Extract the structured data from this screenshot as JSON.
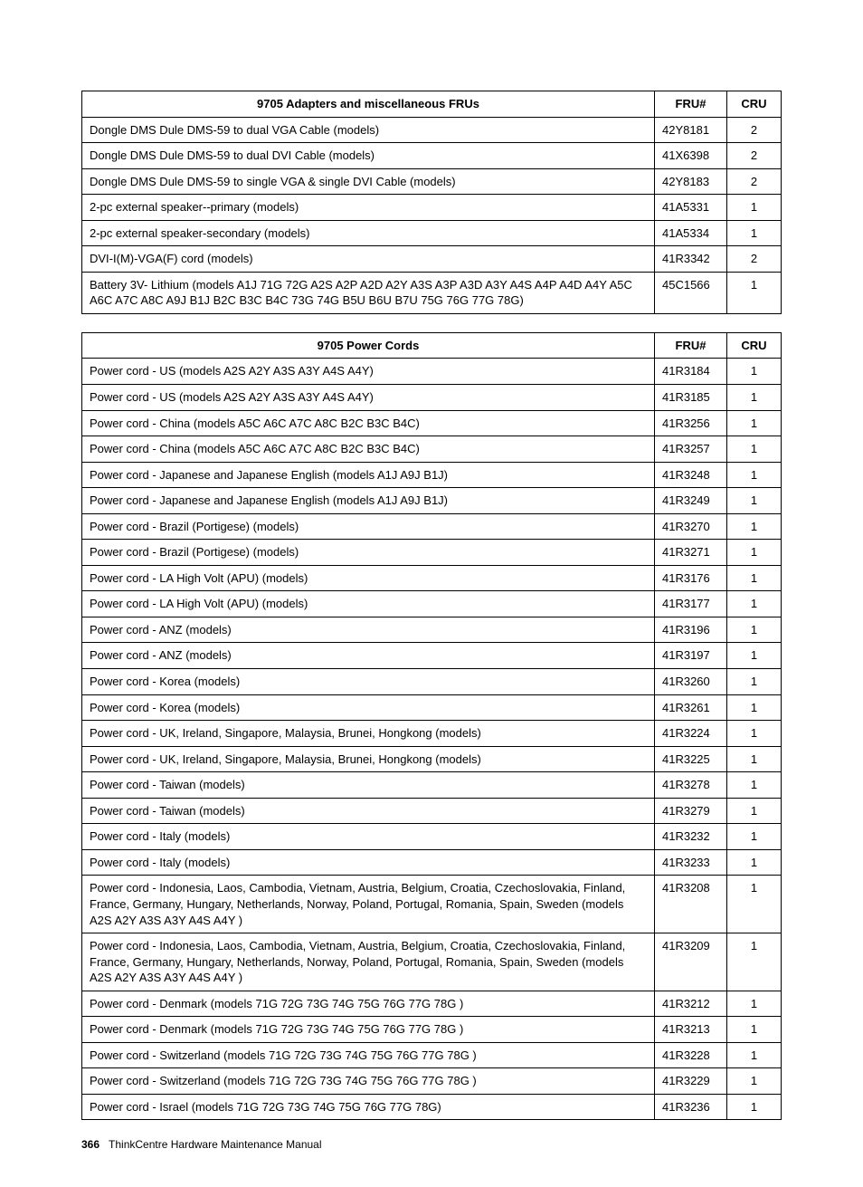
{
  "table1": {
    "headers": {
      "desc": "9705 Adapters and miscellaneous FRUs",
      "fru": "FRU#",
      "cru": "CRU"
    },
    "rows": [
      {
        "desc": "Dongle DMS Dule DMS-59 to dual VGA Cable (models)",
        "fru": "42Y8181",
        "cru": "2"
      },
      {
        "desc": "Dongle DMS Dule DMS-59 to dual DVI Cable (models)",
        "fru": "41X6398",
        "cru": "2"
      },
      {
        "desc": "Dongle DMS Dule DMS-59 to single VGA & single DVI Cable (models)",
        "fru": "42Y8183",
        "cru": "2"
      },
      {
        "desc": "2-pc external speaker--primary (models)",
        "fru": "41A5331",
        "cru": "1"
      },
      {
        "desc": "2-pc external speaker-secondary (models)",
        "fru": "41A5334",
        "cru": "1"
      },
      {
        "desc": "DVI-I(M)-VGA(F) cord (models)",
        "fru": "41R3342",
        "cru": "2"
      },
      {
        "desc": "Battery 3V- Lithium (models A1J 71G 72G A2S A2P A2D A2Y A3S A3P A3D A3Y A4S A4P A4D A4Y A5C A6C A7C A8C A9J B1J B2C B3C B4C 73G 74G B5U B6U B7U 75G 76G 77G 78G)",
        "fru": "45C1566",
        "cru": "1"
      }
    ]
  },
  "table2": {
    "headers": {
      "desc": "9705 Power Cords",
      "fru": "FRU#",
      "cru": "CRU"
    },
    "rows": [
      {
        "desc": "Power cord - US (models A2S A2Y A3S A3Y A4S A4Y)",
        "fru": "41R3184",
        "cru": "1"
      },
      {
        "desc": "Power cord - US (models A2S A2Y A3S A3Y A4S A4Y)",
        "fru": "41R3185",
        "cru": "1"
      },
      {
        "desc": "Power cord - China (models A5C A6C A7C A8C B2C B3C B4C)",
        "fru": "41R3256",
        "cru": "1"
      },
      {
        "desc": "Power cord - China (models A5C A6C A7C A8C B2C B3C B4C)",
        "fru": "41R3257",
        "cru": "1"
      },
      {
        "desc": "Power cord - Japanese and Japanese English (models A1J A9J B1J)",
        "fru": "41R3248",
        "cru": "1"
      },
      {
        "desc": "Power cord - Japanese and Japanese English (models A1J A9J B1J)",
        "fru": "41R3249",
        "cru": "1"
      },
      {
        "desc": "Power cord - Brazil (Portigese) (models)",
        "fru": "41R3270",
        "cru": "1"
      },
      {
        "desc": "Power cord - Brazil (Portigese) (models)",
        "fru": "41R3271",
        "cru": "1"
      },
      {
        "desc": "Power cord - LA High Volt (APU) (models)",
        "fru": "41R3176",
        "cru": "1"
      },
      {
        "desc": "Power cord - LA High Volt (APU) (models)",
        "fru": "41R3177",
        "cru": "1"
      },
      {
        "desc": "Power cord - ANZ (models)",
        "fru": "41R3196",
        "cru": "1"
      },
      {
        "desc": "Power cord - ANZ (models)",
        "fru": "41R3197",
        "cru": "1"
      },
      {
        "desc": "Power cord - Korea (models)",
        "fru": "41R3260",
        "cru": "1"
      },
      {
        "desc": "Power cord - Korea (models)",
        "fru": "41R3261",
        "cru": "1"
      },
      {
        "desc": "Power cord - UK, Ireland, Singapore, Malaysia, Brunei, Hongkong (models)",
        "fru": "41R3224",
        "cru": "1"
      },
      {
        "desc": "Power cord - UK, Ireland, Singapore, Malaysia, Brunei, Hongkong (models)",
        "fru": "41R3225",
        "cru": "1"
      },
      {
        "desc": "Power cord - Taiwan (models)",
        "fru": "41R3278",
        "cru": "1"
      },
      {
        "desc": "Power cord - Taiwan (models)",
        "fru": "41R3279",
        "cru": "1"
      },
      {
        "desc": "Power cord - Italy (models)",
        "fru": "41R3232",
        "cru": "1"
      },
      {
        "desc": "Power cord - Italy (models)",
        "fru": "41R3233",
        "cru": "1"
      },
      {
        "desc": "Power cord - Indonesia, Laos, Cambodia, Vietnam, Austria, Belgium, Croatia, Czechoslovakia, Finland, France, Germany, Hungary, Netherlands, Norway, Poland, Portugal, Romania, Spain, Sweden (models A2S A2Y A3S A3Y A4S A4Y )",
        "fru": "41R3208",
        "cru": "1"
      },
      {
        "desc": "Power cord - Indonesia, Laos, Cambodia, Vietnam, Austria, Belgium, Croatia, Czechoslovakia, Finland, France, Germany, Hungary, Netherlands, Norway, Poland, Portugal, Romania, Spain, Sweden (models A2S A2Y A3S A3Y A4S A4Y )",
        "fru": "41R3209",
        "cru": "1"
      },
      {
        "desc": "Power cord - Denmark (models 71G 72G 73G 74G 75G 76G 77G 78G )",
        "fru": "41R3212",
        "cru": "1"
      },
      {
        "desc": "Power cord - Denmark (models 71G 72G 73G 74G 75G 76G 77G 78G )",
        "fru": "41R3213",
        "cru": "1"
      },
      {
        "desc": "Power cord - Switzerland (models 71G 72G 73G 74G 75G 76G 77G 78G )",
        "fru": "41R3228",
        "cru": "1"
      },
      {
        "desc": "Power cord - Switzerland (models 71G 72G 73G 74G 75G 76G 77G 78G )",
        "fru": "41R3229",
        "cru": "1"
      },
      {
        "desc": "Power cord - Israel (models 71G 72G 73G 74G 75G 76G 77G 78G)",
        "fru": "41R3236",
        "cru": "1"
      }
    ]
  },
  "footer": {
    "page": "366",
    "title": "ThinkCentre Hardware Maintenance Manual"
  }
}
